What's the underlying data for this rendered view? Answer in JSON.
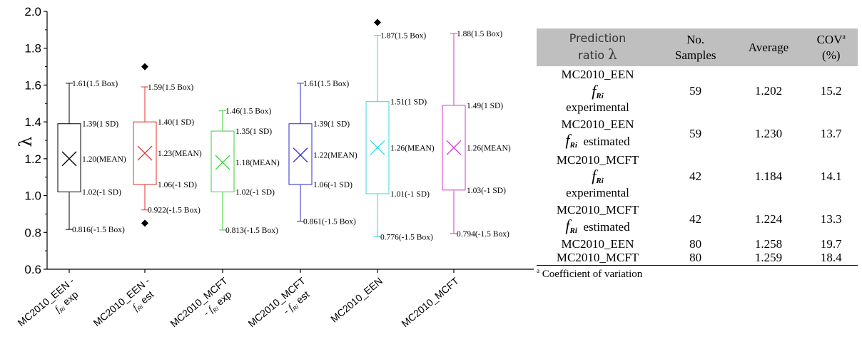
{
  "chart_data": {
    "type": "box",
    "ylabel": "λ",
    "ylim": [
      0.6,
      2.0
    ],
    "yticks": [
      "0.6",
      "0.8",
      "1.0",
      "1.2",
      "1.4",
      "1.6",
      "1.8",
      "2.0"
    ],
    "categories": [
      {
        "line1": "MC2010_EEN -",
        "line2": "exp",
        "sub": "Ri"
      },
      {
        "line1": "MC2010_EEN -",
        "line2": "est",
        "sub": "Ri"
      },
      {
        "line1": "MC2010_MCFT",
        "line2": "- exp",
        "sub": "Ri"
      },
      {
        "line1": "MC2010_MCFT",
        "line2": "- est",
        "sub": "Ri"
      },
      {
        "line1": "MC2010_EEN",
        "line2": "",
        "sub": ""
      },
      {
        "line1": "MC2010_MCFT",
        "line2": "",
        "sub": ""
      }
    ],
    "series": [
      {
        "color": "#000000",
        "whisker_high": 1.61,
        "sd_high": 1.39,
        "mean": 1.2,
        "sd_low": 1.02,
        "whisker_low": 0.816,
        "outliers": [],
        "labels": {
          "whisker_high": "1.61(1.5 Box)",
          "sd_high": "1.39(1 SD)",
          "mean": "1.20(MEAN)",
          "sd_low": "1.02(-1 SD)",
          "whisker_low": "0.816(-1.5 Box)"
        }
      },
      {
        "color": "#e0302a",
        "whisker_high": 1.59,
        "sd_high": 1.4,
        "mean": 1.23,
        "sd_low": 1.06,
        "whisker_low": 0.922,
        "outliers": [
          1.7,
          0.85
        ],
        "labels": {
          "whisker_high": "1.59(1.5 Box)",
          "sd_high": "1.40(1 SD)",
          "mean": "1.23(MEAN)",
          "sd_low": "1.06(-1 SD)",
          "whisker_low": "0.922(-1.5 Box)"
        }
      },
      {
        "color": "#3ad13a",
        "whisker_high": 1.46,
        "sd_high": 1.35,
        "mean": 1.18,
        "sd_low": 1.02,
        "whisker_low": 0.813,
        "outliers": [],
        "labels": {
          "whisker_high": "1.46(1.5 Box)",
          "sd_high": "1.35(1 SD)",
          "mean": "1.18(MEAN)",
          "sd_low": "1.02(-1 SD)",
          "whisker_low": "0.813(-1.5 Box)"
        }
      },
      {
        "color": "#2a2ad0",
        "whisker_high": 1.61,
        "sd_high": 1.39,
        "mean": 1.22,
        "sd_low": 1.06,
        "whisker_low": 0.861,
        "outliers": [],
        "labels": {
          "whisker_high": "1.61(1.5 Box)",
          "sd_high": "1.39(1 SD)",
          "mean": "1.22(MEAN)",
          "sd_low": "1.06(-1 SD)",
          "whisker_low": "0.861(-1.5 Box)"
        }
      },
      {
        "color": "#35d8e0",
        "whisker_high": 1.87,
        "sd_high": 1.51,
        "mean": 1.26,
        "sd_low": 1.01,
        "whisker_low": 0.776,
        "outliers": [
          1.94
        ],
        "labels": {
          "whisker_high": "1.87(1.5 Box)",
          "sd_high": "1.51(1 SD)",
          "mean": "1.26(MEAN)",
          "sd_low": "1.01(-1 SD)",
          "whisker_low": "0.776(-1.5 Box)"
        }
      },
      {
        "color": "#d13ad1",
        "whisker_high": 1.88,
        "sd_high": 1.49,
        "mean": 1.26,
        "sd_low": 1.03,
        "whisker_low": 0.794,
        "outliers": [],
        "labels": {
          "whisker_high": "1.88(1.5 Box)",
          "sd_high": "1.49(1 SD)",
          "mean": "1.26(MEAN)",
          "sd_low": "1.03(-1 SD)",
          "whisker_low": "0.794(-1.5 Box)"
        }
      }
    ]
  },
  "table": {
    "headers": {
      "prediction_line1": "Prediction",
      "prediction_line2": "ratio",
      "prediction_symbol": "λ",
      "samples_line1": "No.",
      "samples_line2": "Samples",
      "average": "Average",
      "cov": "COV",
      "cov_sup": "a",
      "cov_unit": "(%)"
    },
    "rows": [
      {
        "name": "MC2010_EEN",
        "f": "f",
        "sub": "Ri",
        "suffix": "experimental",
        "samples": "59",
        "average": "1.202",
        "cov": "15.2"
      },
      {
        "name": "MC2010_EEN",
        "f": "f",
        "sub": "Ri",
        "suffix": "estimated",
        "samples": "59",
        "average": "1.230",
        "cov": "13.7"
      },
      {
        "name": "MC2010_MCFT",
        "f": "f",
        "sub": "Ri",
        "suffix": "experimental",
        "samples": "42",
        "average": "1.184",
        "cov": "14.1"
      },
      {
        "name": "MC2010_MCFT",
        "f": "f",
        "sub": "Ri",
        "suffix": "estimated",
        "samples": "42",
        "average": "1.224",
        "cov": "13.3"
      },
      {
        "name": "MC2010_EEN",
        "samples": "80",
        "average": "1.258",
        "cov": "19.7"
      },
      {
        "name": "MC2010_MCFT",
        "samples": "80",
        "average": "1.259",
        "cov": "18.4"
      }
    ],
    "footnote_sup": "a",
    "footnote": "Coefficient of variation"
  }
}
